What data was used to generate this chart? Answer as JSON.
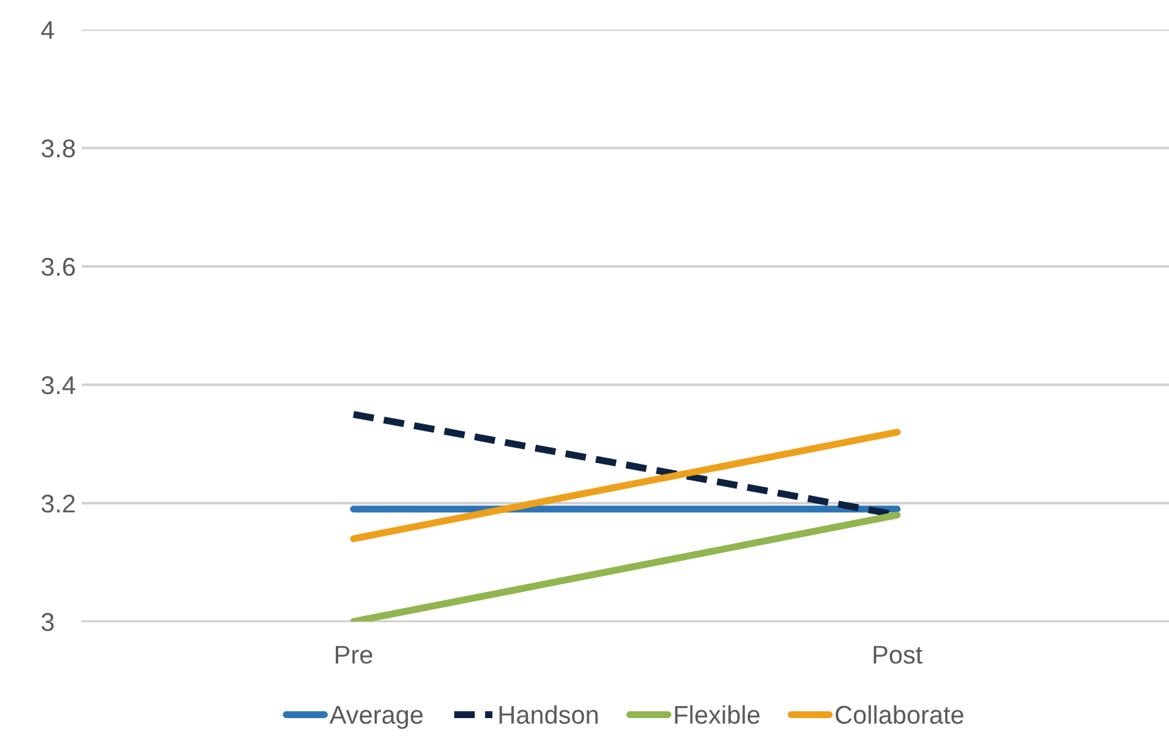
{
  "chart_data": {
    "type": "line",
    "categories": [
      "Pre",
      "Post"
    ],
    "series": [
      {
        "name": "Average",
        "color": "#2e75b6",
        "values": [
          3.19,
          3.19
        ],
        "line_style": "solid"
      },
      {
        "name": "Handson",
        "color": "#0d2240",
        "values": [
          3.35,
          3.18
        ],
        "line_style": "dashed"
      },
      {
        "name": "Flexible",
        "color": "#92b550",
        "values": [
          3.0,
          3.18
        ],
        "line_style": "solid"
      },
      {
        "name": "Collaborate",
        "color": "#eda01b",
        "values": [
          3.14,
          3.32
        ],
        "line_style": "solid"
      }
    ],
    "ylim": [
      3,
      4
    ],
    "yticks": [
      3,
      3.2,
      3.4,
      3.6,
      3.8,
      4
    ],
    "grid": "y",
    "legend": "bottom",
    "marker": "none"
  }
}
